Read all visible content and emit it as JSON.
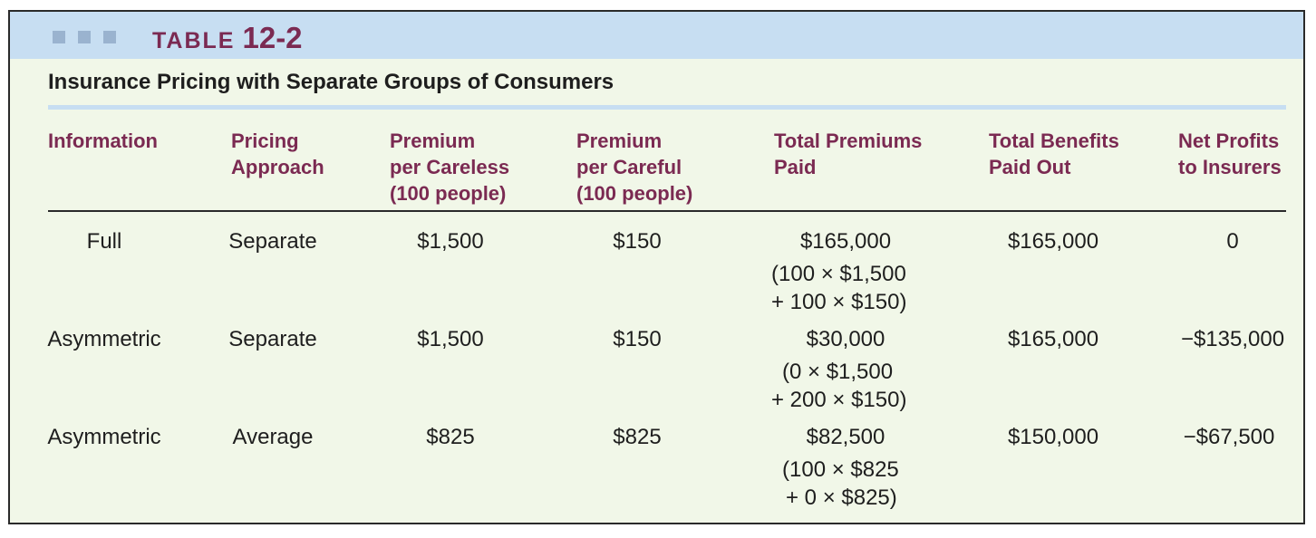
{
  "header": {
    "table_word": "TABLE",
    "table_number": "12-2",
    "subtitle": "Insurance Pricing with Separate Groups of Consumers"
  },
  "columns": [
    [
      "Information"
    ],
    [
      "Pricing",
      "Approach"
    ],
    [
      "Premium",
      "per Careless",
      "(100 people)"
    ],
    [
      "Premium",
      "per Careful",
      "(100 people)"
    ],
    [
      "Total Premiums",
      "Paid"
    ],
    [
      "Total Benefits",
      "Paid Out"
    ],
    [
      "Net Profits",
      "to Insurers"
    ]
  ],
  "rows": [
    {
      "information": "Full",
      "pricing": "Separate",
      "careless": "$1,500",
      "careful": "$150",
      "total_premiums": "$165,000",
      "calc": [
        "(100 × $1,500",
        "+ 100 × $150)"
      ],
      "benefits": "$165,000",
      "profits": "0"
    },
    {
      "information": "Asymmetric",
      "pricing": "Separate",
      "careless": "$1,500",
      "careful": "$150",
      "total_premiums": "$30,000",
      "calc": [
        "(0 × $1,500",
        "+ 200 × $150)"
      ],
      "benefits": "$165,000",
      "profits": "−$135,000"
    },
    {
      "information": "Asymmetric",
      "pricing": "Average",
      "careless": "$825",
      "careful": "$825",
      "total_premiums": "$82,500",
      "calc": [
        "(100 × $825",
        "+ 0 × $825)"
      ],
      "benefits": "$150,000",
      "profits": "−$67,500"
    }
  ],
  "colors": {
    "title_bar": "#c7def2",
    "accent": "#7b2a52",
    "background": "#f1f7e8"
  }
}
